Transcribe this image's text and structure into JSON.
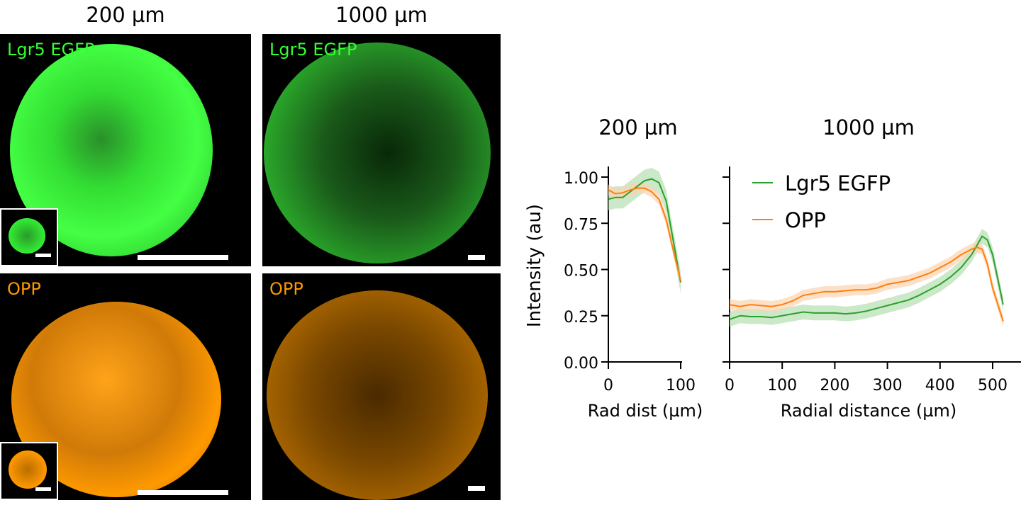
{
  "images": {
    "col_titles": [
      "200 µm",
      "1000 µm"
    ],
    "row_labels": [
      "Lgr5 EGFP",
      "OPP"
    ],
    "colors": {
      "egfp": "#33ff33",
      "opp": "#ff9900"
    }
  },
  "chart_data": [
    {
      "type": "line",
      "title": "200 µm",
      "xlabel": "Rad dist (µm)",
      "ylabel": "Intensity (au)",
      "xlim": [
        0,
        100
      ],
      "ylim": [
        0,
        1
      ],
      "xticks": [
        "0",
        "100"
      ],
      "yticks": [
        "0.00",
        "0.25",
        "0.50",
        "0.75",
        "1.00"
      ],
      "x": [
        0,
        10,
        20,
        30,
        40,
        50,
        60,
        70,
        80,
        90,
        100
      ],
      "series": [
        {
          "name": "Lgr5 EGFP",
          "color": "#2ca02c",
          "band_color": "#b5dfb0",
          "band": 0.06,
          "values": [
            0.88,
            0.89,
            0.89,
            0.92,
            0.95,
            0.98,
            0.99,
            0.97,
            0.87,
            0.65,
            0.43
          ]
        },
        {
          "name": "OPP",
          "color": "#ff7f0e",
          "band_color": "#fcd3b0",
          "band": 0.03,
          "values": [
            0.93,
            0.91,
            0.915,
            0.93,
            0.94,
            0.94,
            0.92,
            0.88,
            0.77,
            0.6,
            0.44
          ]
        }
      ]
    },
    {
      "type": "line",
      "title": "1000 µm",
      "xlabel": "Radial distance (µm)",
      "ylabel": "",
      "xlim": [
        0,
        550
      ],
      "ylim": [
        0,
        1
      ],
      "xticks": [
        "0",
        "100",
        "200",
        "300",
        "400",
        "500"
      ],
      "legend": "top-left",
      "x": [
        0,
        20,
        40,
        60,
        80,
        100,
        120,
        140,
        160,
        180,
        200,
        220,
        240,
        260,
        280,
        300,
        320,
        340,
        360,
        380,
        400,
        420,
        440,
        460,
        470,
        480,
        490,
        500,
        520
      ],
      "series": [
        {
          "name": "Lgr5 EGFP",
          "color": "#2ca02c",
          "band_color": "#b5dfb0",
          "band": 0.04,
          "values": [
            0.23,
            0.25,
            0.245,
            0.245,
            0.24,
            0.25,
            0.26,
            0.27,
            0.265,
            0.265,
            0.265,
            0.26,
            0.265,
            0.275,
            0.29,
            0.305,
            0.32,
            0.335,
            0.36,
            0.39,
            0.42,
            0.46,
            0.51,
            0.58,
            0.63,
            0.68,
            0.66,
            0.58,
            0.31
          ]
        },
        {
          "name": "OPP",
          "color": "#ff7f0e",
          "band_color": "#fcd3b0",
          "band": 0.03,
          "values": [
            0.31,
            0.3,
            0.31,
            0.305,
            0.3,
            0.31,
            0.33,
            0.36,
            0.37,
            0.38,
            0.38,
            0.385,
            0.39,
            0.39,
            0.4,
            0.42,
            0.43,
            0.44,
            0.46,
            0.48,
            0.51,
            0.54,
            0.58,
            0.61,
            0.62,
            0.61,
            0.53,
            0.4,
            0.22
          ]
        }
      ]
    }
  ]
}
